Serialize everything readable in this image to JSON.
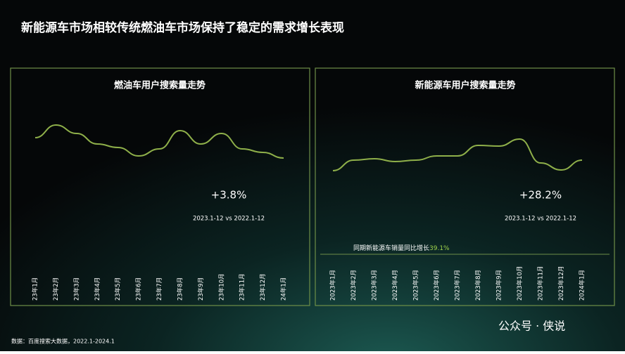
{
  "title": "新能源车市场相较传统燃油车市场保持了稳定的需求增长表现",
  "chart_data": [
    {
      "type": "line",
      "title": "燃油车用户搜索量走势",
      "categories": [
        "23年1月",
        "23年2月",
        "23年3月",
        "23年4月",
        "23年5月",
        "23年6月",
        "23年7月",
        "23年8月",
        "23年9月",
        "23年10月",
        "23年11月",
        "23年12月",
        "24年1月"
      ],
      "series": [
        {
          "color": "#8fb04a",
          "values": [
            64,
            82,
            70,
            55,
            50,
            38,
            48,
            74,
            55,
            70,
            48,
            43,
            35
          ]
        }
      ],
      "ylim": [
        0,
        100
      ],
      "annotations": [
        "+3.8%",
        "2023.1-12 vs 2022.1-12"
      ]
    },
    {
      "type": "line",
      "title": "新能源车用户搜索量走势",
      "categories": [
        "2023年1月",
        "2023年2月",
        "2023年3月",
        "2023年4月",
        "2023年5月",
        "2023年6月",
        "2023年7月",
        "2023年8月",
        "2023年9月",
        "2023年10月",
        "2023年11月",
        "2023年12月",
        "2024年1月"
      ],
      "series": [
        {
          "color": "#8fb04a",
          "values": [
            17,
            32,
            34,
            30,
            32,
            38,
            38,
            53,
            52,
            62,
            28,
            18,
            32
          ]
        }
      ],
      "ylim": [
        0,
        100
      ],
      "annotations": [
        "+28.2%",
        "2023.1-12 vs 2022.1-12"
      ],
      "note": {
        "text": "同期新能源车销量同比增长",
        "highlight": "39.1%"
      }
    }
  ],
  "source": "数据：百度搜索大数据，2022.1-2024.1",
  "watermark": "公众号 · 侠说"
}
